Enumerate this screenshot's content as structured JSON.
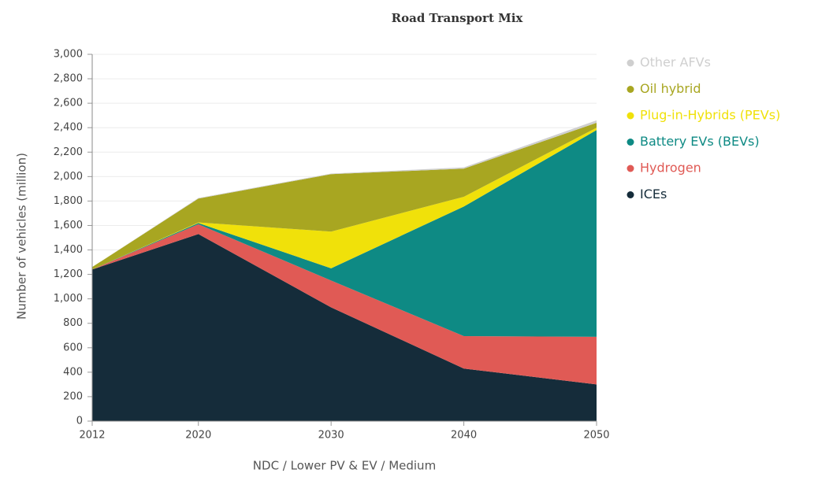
{
  "chart_data": {
    "type": "stacked_area",
    "title": "Road Transport Mix",
    "x_label": "NDC / Lower PV & EV / Medium",
    "y_label": "Number of vehicles (million)",
    "x": [
      2012,
      2020,
      2030,
      2040,
      2050
    ],
    "series": [
      {
        "name": "ICEs",
        "color": "#152c3a",
        "values": [
          1240,
          1530,
          930,
          430,
          300
        ]
      },
      {
        "name": "Hydrogen",
        "color": "#e05a55",
        "values": [
          0,
          80,
          220,
          265,
          390
        ]
      },
      {
        "name": "Battery EVs (BEVs)",
        "color": "#0e8a84",
        "values": [
          0,
          10,
          100,
          1060,
          1690
        ]
      },
      {
        "name": "Plug-in-Hybrids (PEVs)",
        "color": "#f0e10a",
        "values": [
          0,
          5,
          300,
          80,
          20
        ]
      },
      {
        "name": "Oil hybrid",
        "color": "#a8a621",
        "values": [
          20,
          195,
          470,
          230,
          40
        ]
      },
      {
        "name": "Other AFVs",
        "color": "#cfcfcf",
        "values": [
          0,
          5,
          5,
          10,
          20
        ]
      }
    ],
    "xlim": [
      2012,
      2050
    ],
    "xticks": [
      2012,
      2020,
      2030,
      2040,
      2050
    ],
    "ylim": [
      0,
      3000
    ],
    "yticks": [
      0,
      200,
      400,
      600,
      800,
      {
        "value": 1000,
        "label": "1,000"
      },
      {
        "value": 1200,
        "label": "1,200"
      },
      {
        "value": 1400,
        "label": "1,400"
      },
      {
        "value": 1600,
        "label": "1,600"
      },
      {
        "value": 1800,
        "label": "1,800"
      },
      {
        "value": 2000,
        "label": "2,000"
      },
      {
        "value": 2200,
        "label": "2,200"
      },
      {
        "value": 2400,
        "label": "2,400"
      },
      {
        "value": 2600,
        "label": "2,600"
      },
      {
        "value": 2800,
        "label": "2,800"
      },
      {
        "value": 3000,
        "label": "3,000"
      }
    ],
    "grid": true,
    "legend": "right"
  }
}
